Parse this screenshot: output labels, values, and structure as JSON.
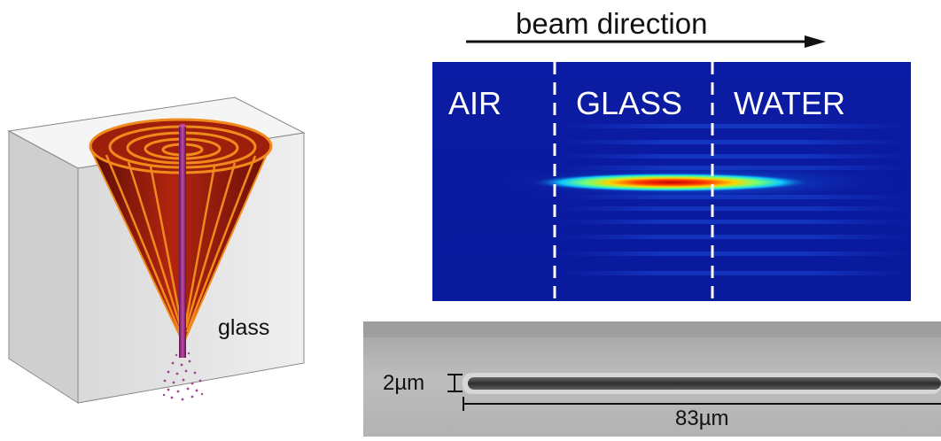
{
  "beam": {
    "label": "beam direction",
    "arrow_color": "#111111"
  },
  "field_panel": {
    "regions": [
      {
        "id": "air",
        "label": "AIR"
      },
      {
        "id": "glass",
        "label": "GLASS"
      },
      {
        "id": "water",
        "label": "WATER"
      }
    ],
    "background_color": "#0a1ea8",
    "divider_color": "#ffffff",
    "colormap": "jet"
  },
  "micrograph": {
    "width_label": "2µm",
    "length_label": "83µm"
  },
  "left_figure": {
    "material_label": "glass",
    "block_color": "#e6e6e6",
    "cone_color": "#8b1a0c",
    "ring_color": "#f08a1c",
    "rod_color": "#8a2a78"
  }
}
